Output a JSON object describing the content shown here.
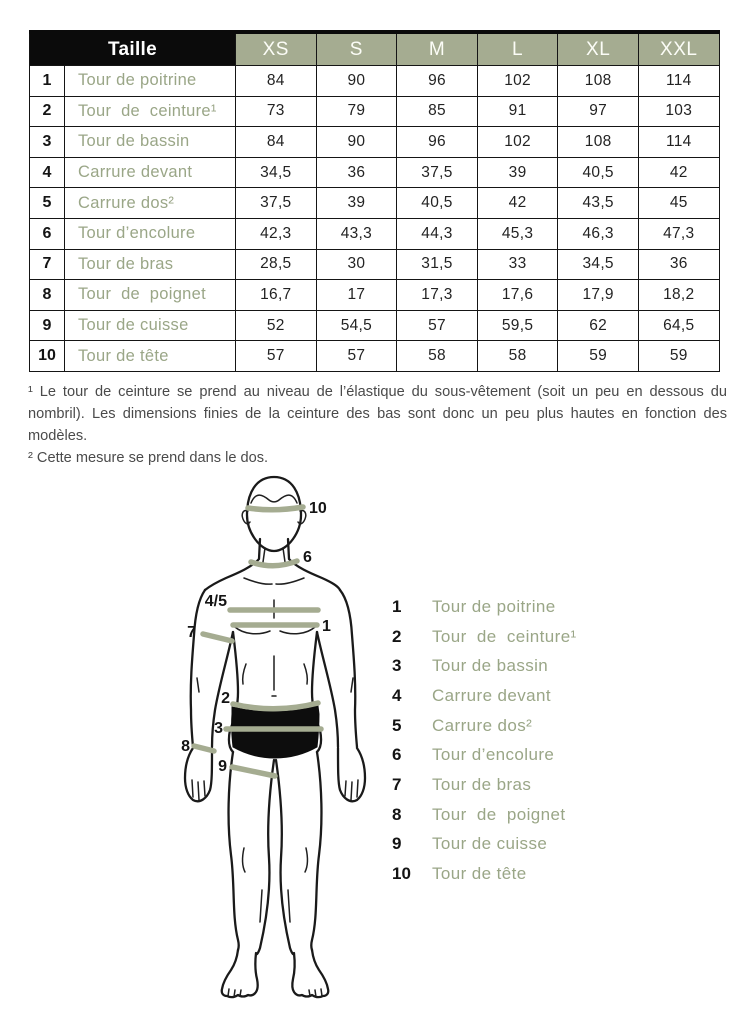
{
  "colors": {
    "accent_green": "#a5ac91",
    "label_green": "#9aa687",
    "table_black": "#0b0b0b",
    "value_text": "#232323",
    "footnote_text": "#4a4a4a"
  },
  "size_table": {
    "corner_label": "Taille",
    "size_headers": [
      "XS",
      "S",
      "M",
      "L",
      "XL",
      "XXL"
    ],
    "rows": [
      {
        "num": "1",
        "label": "Tour de poitrine",
        "values": [
          "84",
          "90",
          "96",
          "102",
          "108",
          "114"
        ]
      },
      {
        "num": "2",
        "label": "Tour  de  ceinture¹",
        "values": [
          "73",
          "79",
          "85",
          "91",
          "97",
          "103"
        ]
      },
      {
        "num": "3",
        "label": "Tour de bassin",
        "values": [
          "84",
          "90",
          "96",
          "102",
          "108",
          "114"
        ]
      },
      {
        "num": "4",
        "label": "Carrure devant",
        "values": [
          "34,5",
          "36",
          "37,5",
          "39",
          "40,5",
          "42"
        ]
      },
      {
        "num": "5",
        "label": "Carrure dos²",
        "values": [
          "37,5",
          "39",
          "40,5",
          "42",
          "43,5",
          "45"
        ]
      },
      {
        "num": "6",
        "label": "Tour d’encolure",
        "values": [
          "42,3",
          "43,3",
          "44,3",
          "45,3",
          "46,3",
          "47,3"
        ]
      },
      {
        "num": "7",
        "label": "Tour de bras",
        "values": [
          "28,5",
          "30",
          "31,5",
          "33",
          "34,5",
          "36"
        ]
      },
      {
        "num": "8",
        "label": "Tour  de  poignet",
        "values": [
          "16,7",
          "17",
          "17,3",
          "17,6",
          "17,9",
          "18,2"
        ]
      },
      {
        "num": "9",
        "label": "Tour de cuisse",
        "values": [
          "52",
          "54,5",
          "57",
          "59,5",
          "62",
          "64,5"
        ]
      },
      {
        "num": "10",
        "label": "Tour de tête",
        "values": [
          "57",
          "57",
          "58",
          "58",
          "59",
          "59"
        ]
      }
    ]
  },
  "footnotes": {
    "note1": "¹ Le tour de ceinture se prend au niveau de l’élastique du sous-vêtement (soit un peu en dessous du nombril). Les dimensions finies de la ceinture des bas sont donc un peu plus hautes en fonction des modèles.",
    "note2": "² Cette mesure se prend dans le dos."
  },
  "diagram": {
    "labels": {
      "head": "10",
      "neck": "6",
      "carrure": "4/5",
      "chest": "1",
      "arm": "7",
      "waist": "2",
      "hip": "3",
      "wrist": "8",
      "thigh": "9"
    }
  },
  "legend": {
    "items": [
      {
        "num": "1",
        "label": "Tour de poitrine"
      },
      {
        "num": "2",
        "label": "Tour  de  ceinture¹"
      },
      {
        "num": "3",
        "label": "Tour de bassin"
      },
      {
        "num": "4",
        "label": "Carrure devant"
      },
      {
        "num": "5",
        "label": "Carrure dos²"
      },
      {
        "num": "6",
        "label": "Tour d’encolure"
      },
      {
        "num": "7",
        "label": "Tour de bras"
      },
      {
        "num": "8",
        "label": "Tour  de  poignet"
      },
      {
        "num": "9",
        "label": "Tour de cuisse"
      },
      {
        "num": "10",
        "label": "Tour de tête"
      }
    ]
  }
}
